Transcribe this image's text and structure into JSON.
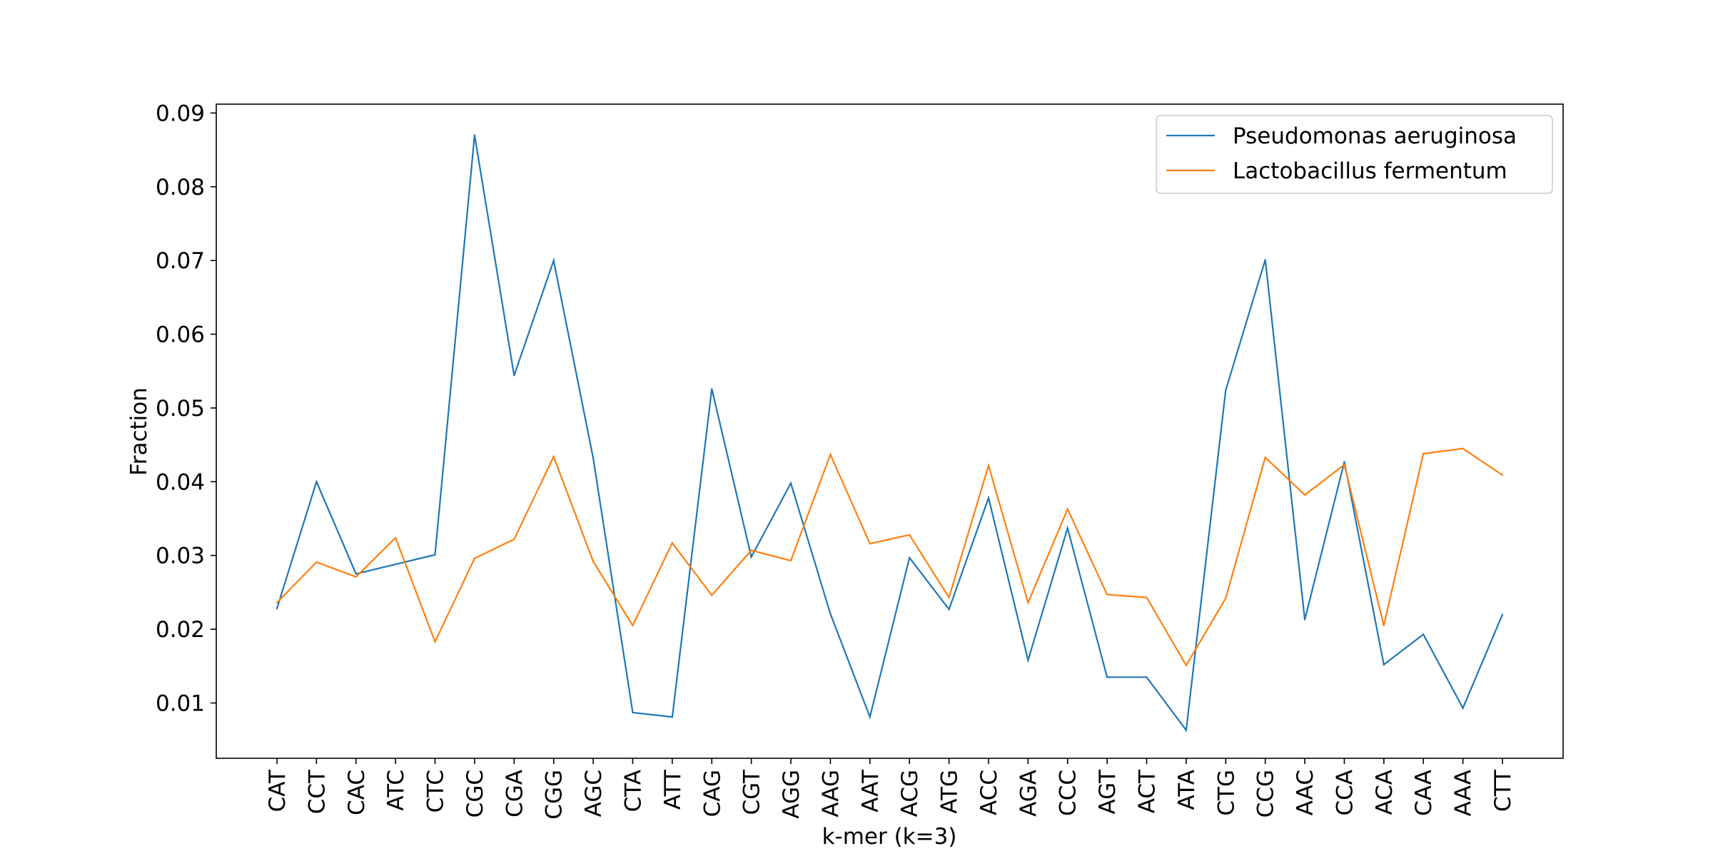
{
  "chart_data": {
    "type": "line",
    "title": "",
    "xlabel": "k-mer (k=3)",
    "ylabel": "Fraction",
    "categories": [
      "CAT",
      "CCT",
      "CAC",
      "ATC",
      "CTC",
      "CGC",
      "CGA",
      "CGG",
      "AGC",
      "CTA",
      "ATT",
      "CAG",
      "CGT",
      "AGG",
      "AAG",
      "AAT",
      "ACG",
      "ATG",
      "ACC",
      "AGA",
      "CCC",
      "AGT",
      "ACT",
      "ATA",
      "CTG",
      "CCG",
      "AAC",
      "CCA",
      "ACA",
      "CAA",
      "AAA",
      "CTT"
    ],
    "ylim": [
      0.0025,
      0.0912
    ],
    "yticks": [
      "0.01",
      "0.02",
      "0.03",
      "0.04",
      "0.05",
      "0.06",
      "0.07",
      "0.08",
      "0.09"
    ],
    "grid": false,
    "legend_position": "upper right",
    "series": [
      {
        "name": "Pseudomonas aeruginosa",
        "color": "#1f77b4",
        "values": [
          0.0228,
          0.04,
          0.0275,
          0.0288,
          0.0301,
          0.087,
          0.0544,
          0.07,
          0.0432,
          0.0087,
          0.0081,
          0.0526,
          0.0298,
          0.0398,
          0.0221,
          0.0081,
          0.0297,
          0.0227,
          0.0378,
          0.0158,
          0.0337,
          0.0135,
          0.0135,
          0.0063,
          0.0524,
          0.0701,
          0.0213,
          0.0427,
          0.0152,
          0.0193,
          0.0093,
          0.022
        ]
      },
      {
        "name": "Lactobacillus fermentum",
        "color": "#ff7f0e",
        "values": [
          0.0236,
          0.0291,
          0.0271,
          0.0324,
          0.0183,
          0.0296,
          0.0322,
          0.0434,
          0.0292,
          0.0205,
          0.0317,
          0.0246,
          0.0307,
          0.0293,
          0.0437,
          0.0316,
          0.0328,
          0.0243,
          0.0422,
          0.0236,
          0.0363,
          0.0247,
          0.0243,
          0.0151,
          0.0242,
          0.0433,
          0.0382,
          0.0423,
          0.0205,
          0.0438,
          0.0445,
          0.0409
        ]
      }
    ]
  }
}
